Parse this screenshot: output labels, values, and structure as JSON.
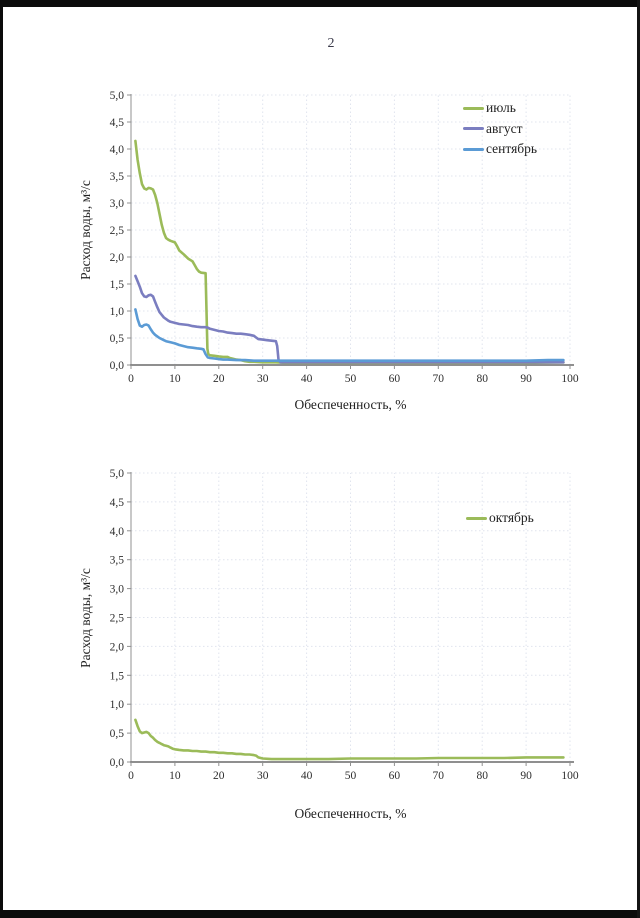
{
  "page": {
    "number": "2",
    "background_color": "#ffffff",
    "scan_border_color": "#0b0b0b"
  },
  "colors": {
    "july_green": "#9BBB59",
    "august_purple": "#7B7EC0",
    "september_blue": "#5B9BD5",
    "october_green": "#9BBB59",
    "axis_gray": "#8f8f8f",
    "grid_gray": "#e0e4ee"
  },
  "chart_data": [
    {
      "type": "line",
      "title": "",
      "xlabel": "Обеспеченность, %",
      "ylabel": "Расход воды, м³/с",
      "xlim": [
        0,
        100
      ],
      "ylim": [
        0,
        5
      ],
      "grid": true,
      "legend_position": "inside-top-right",
      "x_ticks": [
        "0",
        "10",
        "20",
        "30",
        "40",
        "50",
        "60",
        "70",
        "80",
        "90",
        "100"
      ],
      "y_ticks": [
        "0,0",
        "0,5",
        "1,0",
        "1,5",
        "2,0",
        "2,5",
        "3,0",
        "3,5",
        "4,0",
        "4,5",
        "5,0"
      ],
      "series": [
        {
          "name": "июль",
          "color": "#9BBB59",
          "points": [
            [
              1,
              4.15
            ],
            [
              1.5,
              3.8
            ],
            [
              2,
              3.55
            ],
            [
              2.5,
              3.35
            ],
            [
              3,
              3.27
            ],
            [
              3.5,
              3.25
            ],
            [
              4,
              3.28
            ],
            [
              4.5,
              3.27
            ],
            [
              5,
              3.25
            ],
            [
              5.5,
              3.15
            ],
            [
              6,
              3.0
            ],
            [
              6.5,
              2.8
            ],
            [
              7,
              2.6
            ],
            [
              7.5,
              2.45
            ],
            [
              8,
              2.35
            ],
            [
              8.5,
              2.32
            ],
            [
              9,
              2.3
            ],
            [
              10,
              2.27
            ],
            [
              10.5,
              2.2
            ],
            [
              11,
              2.12
            ],
            [
              12,
              2.05
            ],
            [
              13,
              1.97
            ],
            [
              14,
              1.92
            ],
            [
              14.5,
              1.85
            ],
            [
              15,
              1.78
            ],
            [
              15.5,
              1.73
            ],
            [
              16,
              1.71
            ],
            [
              17,
              1.7
            ],
            [
              17.2,
              1.0
            ],
            [
              17.4,
              0.3
            ],
            [
              17.6,
              0.2
            ],
            [
              18,
              0.18
            ],
            [
              19,
              0.17
            ],
            [
              20,
              0.16
            ],
            [
              21,
              0.15
            ],
            [
              22,
              0.15
            ],
            [
              22.5,
              0.13
            ],
            [
              23,
              0.12
            ],
            [
              24,
              0.1
            ],
            [
              25,
              0.09
            ],
            [
              26,
              0.07
            ],
            [
              27,
              0.06
            ],
            [
              28,
              0.06
            ],
            [
              30,
              0.05
            ],
            [
              33,
              0.05
            ],
            [
              35,
              0.04
            ],
            [
              40,
              0.04
            ],
            [
              50,
              0.04
            ],
            [
              60,
              0.04
            ],
            [
              70,
              0.04
            ],
            [
              80,
              0.04
            ],
            [
              90,
              0.04
            ],
            [
              98.5,
              0.05
            ]
          ]
        },
        {
          "name": "август",
          "color": "#7B7EC0",
          "points": [
            [
              1,
              1.65
            ],
            [
              1.5,
              1.55
            ],
            [
              2,
              1.45
            ],
            [
              2.5,
              1.33
            ],
            [
              3,
              1.27
            ],
            [
              3.5,
              1.26
            ],
            [
              4,
              1.29
            ],
            [
              4.5,
              1.3
            ],
            [
              5,
              1.27
            ],
            [
              5.5,
              1.17
            ],
            [
              6,
              1.07
            ],
            [
              6.5,
              0.98
            ],
            [
              7,
              0.93
            ],
            [
              7.5,
              0.88
            ],
            [
              8,
              0.85
            ],
            [
              8.5,
              0.82
            ],
            [
              9,
              0.8
            ],
            [
              10,
              0.78
            ],
            [
              11,
              0.76
            ],
            [
              12,
              0.75
            ],
            [
              13,
              0.74
            ],
            [
              14,
              0.72
            ],
            [
              15,
              0.71
            ],
            [
              16,
              0.7
            ],
            [
              17,
              0.7
            ],
            [
              17.5,
              0.69
            ],
            [
              18,
              0.67
            ],
            [
              19,
              0.65
            ],
            [
              20,
              0.63
            ],
            [
              21,
              0.62
            ],
            [
              22,
              0.6
            ],
            [
              23,
              0.59
            ],
            [
              24,
              0.58
            ],
            [
              25,
              0.58
            ],
            [
              26,
              0.57
            ],
            [
              27,
              0.56
            ],
            [
              28,
              0.54
            ],
            [
              28.5,
              0.51
            ],
            [
              29,
              0.48
            ],
            [
              30,
              0.47
            ],
            [
              31,
              0.46
            ],
            [
              32,
              0.45
            ],
            [
              33,
              0.44
            ],
            [
              33.3,
              0.35
            ],
            [
              33.6,
              0.1
            ],
            [
              34,
              0.05
            ],
            [
              35,
              0.05
            ],
            [
              40,
              0.05
            ],
            [
              50,
              0.05
            ],
            [
              60,
              0.05
            ],
            [
              70,
              0.05
            ],
            [
              80,
              0.05
            ],
            [
              90,
              0.05
            ],
            [
              98.5,
              0.05
            ]
          ]
        },
        {
          "name": "сентябрь",
          "color": "#5B9BD5",
          "points": [
            [
              1,
              1.03
            ],
            [
              1.5,
              0.85
            ],
            [
              2,
              0.73
            ],
            [
              2.5,
              0.71
            ],
            [
              3,
              0.74
            ],
            [
              3.5,
              0.75
            ],
            [
              4,
              0.73
            ],
            [
              4.5,
              0.66
            ],
            [
              5,
              0.6
            ],
            [
              5.5,
              0.56
            ],
            [
              6,
              0.53
            ],
            [
              6.5,
              0.5
            ],
            [
              7,
              0.48
            ],
            [
              7.5,
              0.46
            ],
            [
              8,
              0.44
            ],
            [
              9,
              0.42
            ],
            [
              10,
              0.4
            ],
            [
              11,
              0.37
            ],
            [
              12,
              0.35
            ],
            [
              13,
              0.33
            ],
            [
              14,
              0.32
            ],
            [
              15,
              0.31
            ],
            [
              16,
              0.3
            ],
            [
              16.5,
              0.29
            ],
            [
              17,
              0.2
            ],
            [
              17.5,
              0.14
            ],
            [
              18,
              0.13
            ],
            [
              19,
              0.12
            ],
            [
              20,
              0.11
            ],
            [
              21,
              0.1
            ],
            [
              22,
              0.1
            ],
            [
              24,
              0.09
            ],
            [
              26,
              0.09
            ],
            [
              28,
              0.08
            ],
            [
              30,
              0.08
            ],
            [
              35,
              0.08
            ],
            [
              40,
              0.08
            ],
            [
              50,
              0.08
            ],
            [
              60,
              0.08
            ],
            [
              70,
              0.08
            ],
            [
              80,
              0.08
            ],
            [
              90,
              0.08
            ],
            [
              95,
              0.09
            ],
            [
              98.5,
              0.09
            ]
          ]
        }
      ]
    },
    {
      "type": "line",
      "title": "",
      "xlabel": "Обеспеченность, %",
      "ylabel": "Расход воды, м³/с",
      "xlim": [
        0,
        100
      ],
      "ylim": [
        0,
        5
      ],
      "grid": true,
      "legend_position": "inside-right",
      "x_ticks": [
        "0",
        "10",
        "20",
        "30",
        "40",
        "50",
        "60",
        "70",
        "80",
        "90",
        "100"
      ],
      "y_ticks": [
        "0,0",
        "0,5",
        "1,0",
        "1,5",
        "2,0",
        "2,5",
        "3,0",
        "3,5",
        "4,0",
        "4,5",
        "5,0"
      ],
      "series": [
        {
          "name": "октябрь",
          "color": "#9BBB59",
          "points": [
            [
              1,
              0.73
            ],
            [
              1.5,
              0.62
            ],
            [
              2,
              0.53
            ],
            [
              2.5,
              0.5
            ],
            [
              3,
              0.51
            ],
            [
              3.5,
              0.52
            ],
            [
              4,
              0.5
            ],
            [
              4.5,
              0.45
            ],
            [
              5,
              0.42
            ],
            [
              5.5,
              0.38
            ],
            [
              6,
              0.35
            ],
            [
              6.5,
              0.33
            ],
            [
              7,
              0.31
            ],
            [
              7.5,
              0.29
            ],
            [
              8,
              0.28
            ],
            [
              8.5,
              0.27
            ],
            [
              9,
              0.25
            ],
            [
              9.5,
              0.23
            ],
            [
              10,
              0.22
            ],
            [
              11,
              0.21
            ],
            [
              12,
              0.2
            ],
            [
              13,
              0.2
            ],
            [
              14,
              0.19
            ],
            [
              15,
              0.19
            ],
            [
              16,
              0.18
            ],
            [
              17,
              0.18
            ],
            [
              18,
              0.17
            ],
            [
              19,
              0.17
            ],
            [
              20,
              0.16
            ],
            [
              21,
              0.16
            ],
            [
              22,
              0.15
            ],
            [
              23,
              0.15
            ],
            [
              24,
              0.14
            ],
            [
              25,
              0.14
            ],
            [
              26,
              0.13
            ],
            [
              27,
              0.13
            ],
            [
              28,
              0.12
            ],
            [
              28.5,
              0.11
            ],
            [
              29,
              0.08
            ],
            [
              30,
              0.06
            ],
            [
              32,
              0.05
            ],
            [
              35,
              0.05
            ],
            [
              40,
              0.05
            ],
            [
              45,
              0.05
            ],
            [
              50,
              0.06
            ],
            [
              55,
              0.06
            ],
            [
              60,
              0.06
            ],
            [
              65,
              0.06
            ],
            [
              70,
              0.07
            ],
            [
              75,
              0.07
            ],
            [
              80,
              0.07
            ],
            [
              85,
              0.07
            ],
            [
              90,
              0.08
            ],
            [
              95,
              0.08
            ],
            [
              98.5,
              0.08
            ]
          ]
        }
      ]
    }
  ]
}
